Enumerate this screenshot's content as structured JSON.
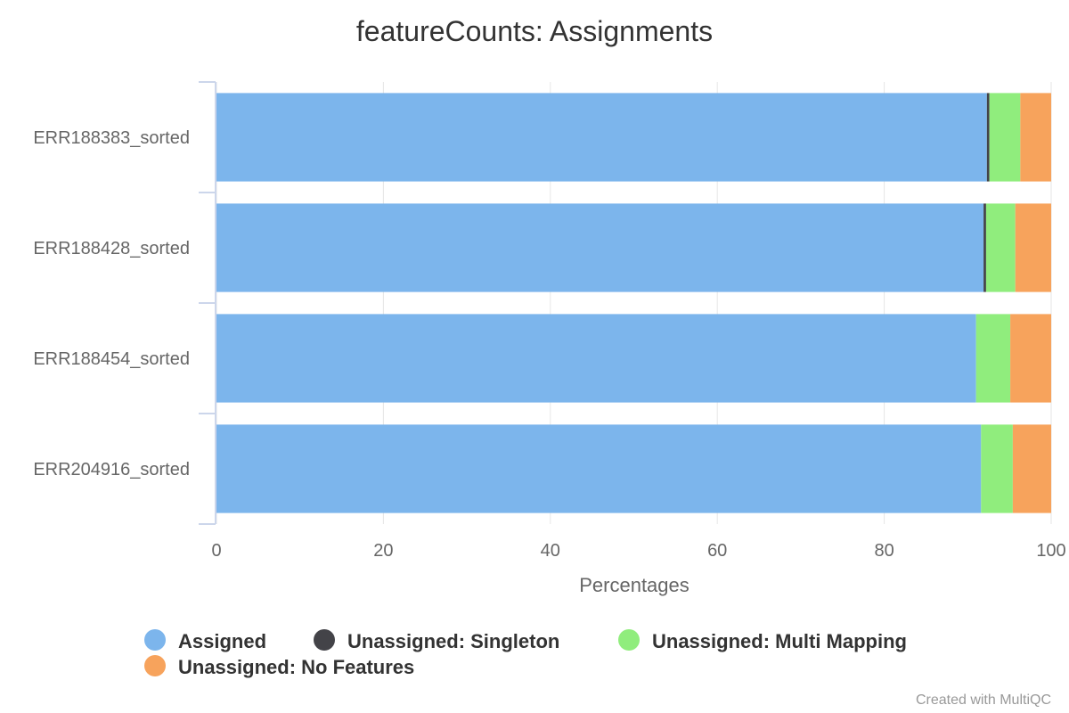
{
  "chart_data": {
    "type": "bar",
    "orientation": "horizontal",
    "stacked": true,
    "title": "featureCounts: Assignments",
    "xlabel": "Percentages",
    "ylabel": "",
    "xlim": [
      0,
      100
    ],
    "xticks": [
      "0",
      "20",
      "40",
      "60",
      "80",
      "100"
    ],
    "grid": true,
    "legend_position": "bottom",
    "categories": [
      "ERR188383_sorted",
      "ERR188428_sorted",
      "ERR188454_sorted",
      "ERR204916_sorted"
    ],
    "series": [
      {
        "name": "Assigned",
        "color": "#7cb5ec",
        "values": [
          92.3,
          91.9,
          91.0,
          91.6
        ]
      },
      {
        "name": "Unassigned: Singleton",
        "color": "#434348",
        "values": [
          0.3,
          0.3,
          0.0,
          0.0
        ]
      },
      {
        "name": "Unassigned: Multi Mapping",
        "color": "#90ed7d",
        "values": [
          3.7,
          3.5,
          4.1,
          3.8
        ]
      },
      {
        "name": "Unassigned: No Features",
        "color": "#f7a35c",
        "values": [
          3.7,
          4.3,
          4.9,
          4.6
        ]
      }
    ]
  },
  "credits": "Created with MultiQC"
}
